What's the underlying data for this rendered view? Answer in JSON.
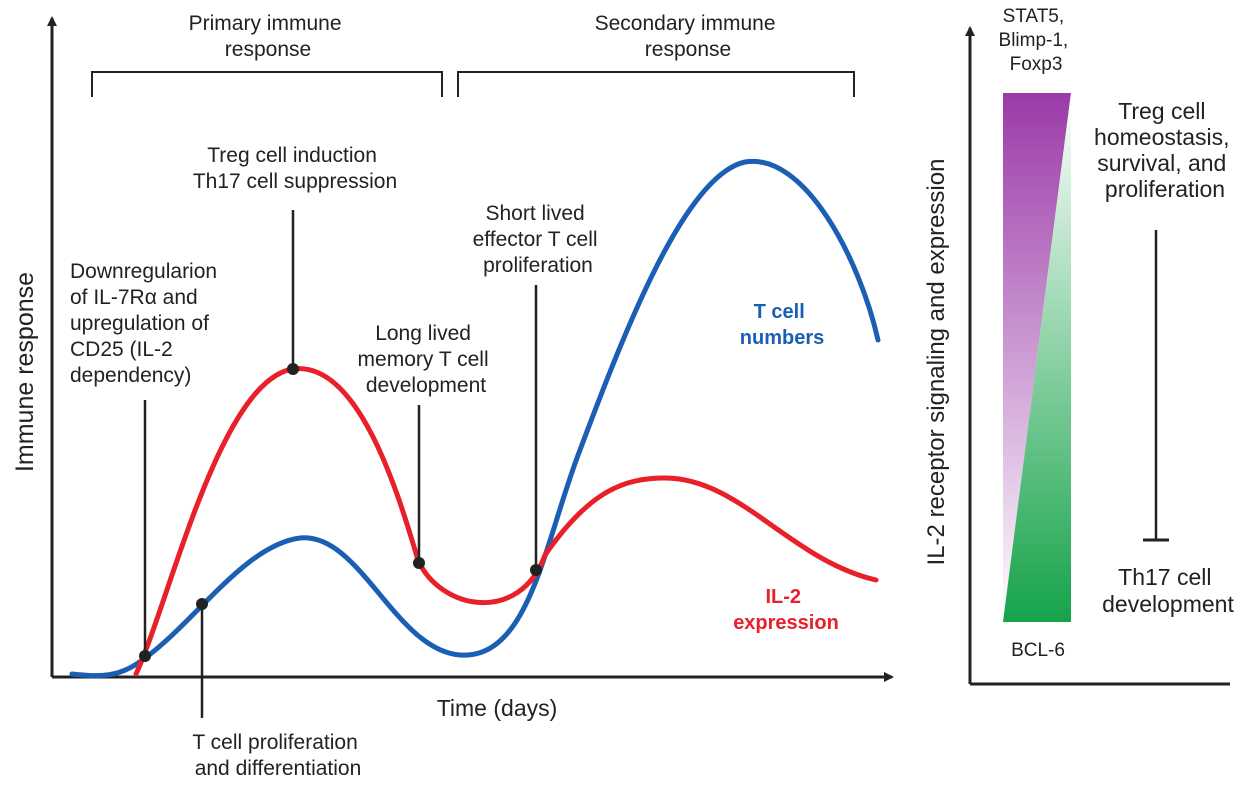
{
  "colors": {
    "t_cell": "#1a5fb4",
    "il2": "#e8202a",
    "axis": "#222222",
    "purple": "#9b3aa8",
    "green": "#16a34a"
  },
  "main_chart": {
    "y_axis_title": "Immune response",
    "x_axis_title": "Time (days)",
    "phases": [
      {
        "lines": [
          "Primary immune",
          "response"
        ]
      },
      {
        "lines": [
          "Secondary immune",
          "response"
        ]
      }
    ],
    "series": [
      {
        "name_lines": [
          "T cell",
          "numbers"
        ]
      },
      {
        "name_lines": [
          "IL-2",
          "expression"
        ]
      }
    ],
    "annotations": [
      {
        "lines": [
          "Downregularion",
          "of IL-7Rα and",
          "upregulation of",
          "CD25 (IL-2",
          "dependency)"
        ]
      },
      {
        "lines": [
          "Treg cell induction",
          "Th17 cell suppression"
        ]
      },
      {
        "lines": [
          "Long lived",
          "memory T cell",
          "development"
        ]
      },
      {
        "lines": [
          "Short lived",
          "effector T cell",
          "proliferation"
        ]
      },
      {
        "lines": [
          "T cell proliferation",
          "and differentiation"
        ]
      }
    ]
  },
  "side_panel": {
    "y_axis_title": "IL-2 receptor signaling and expression",
    "top_factors": [
      "STAT5,",
      "Blimp-1,",
      "Foxp3"
    ],
    "bottom_factor": "BCL-6",
    "outcome_top": [
      "Treg cell",
      "homeostasis,",
      "survival, and",
      "proliferation"
    ],
    "outcome_bottom": [
      "Th17 cell",
      "development"
    ]
  }
}
